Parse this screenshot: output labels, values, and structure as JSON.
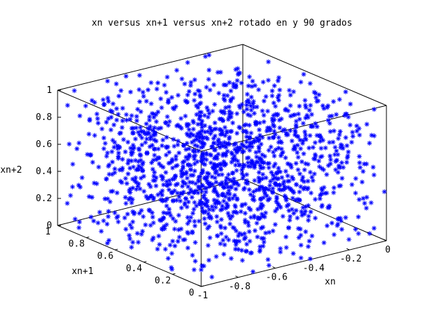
{
  "chart_data": {
    "type": "scatter",
    "title": "xn versus xn+1 versus xn+2 rotado en y 90 grados",
    "xlabel": "xn",
    "ylabel": "xn+1",
    "zlabel": "xn+2",
    "xlim": [
      -1,
      0
    ],
    "ylim": [
      0,
      1
    ],
    "zlim": [
      0,
      1
    ],
    "x_ticks": [
      "-1",
      "-0.8",
      "-0.6",
      "-0.4",
      "-0.2",
      "0"
    ],
    "y_ticks": [
      "0",
      "0.2",
      "0.4",
      "0.6",
      "0.8",
      "1"
    ],
    "z_ticks": [
      "0",
      "0.2",
      "0.4",
      "0.6",
      "0.8",
      "1"
    ],
    "marker": "*",
    "color": "#0000ff",
    "grid": false,
    "legend": "none"
  }
}
